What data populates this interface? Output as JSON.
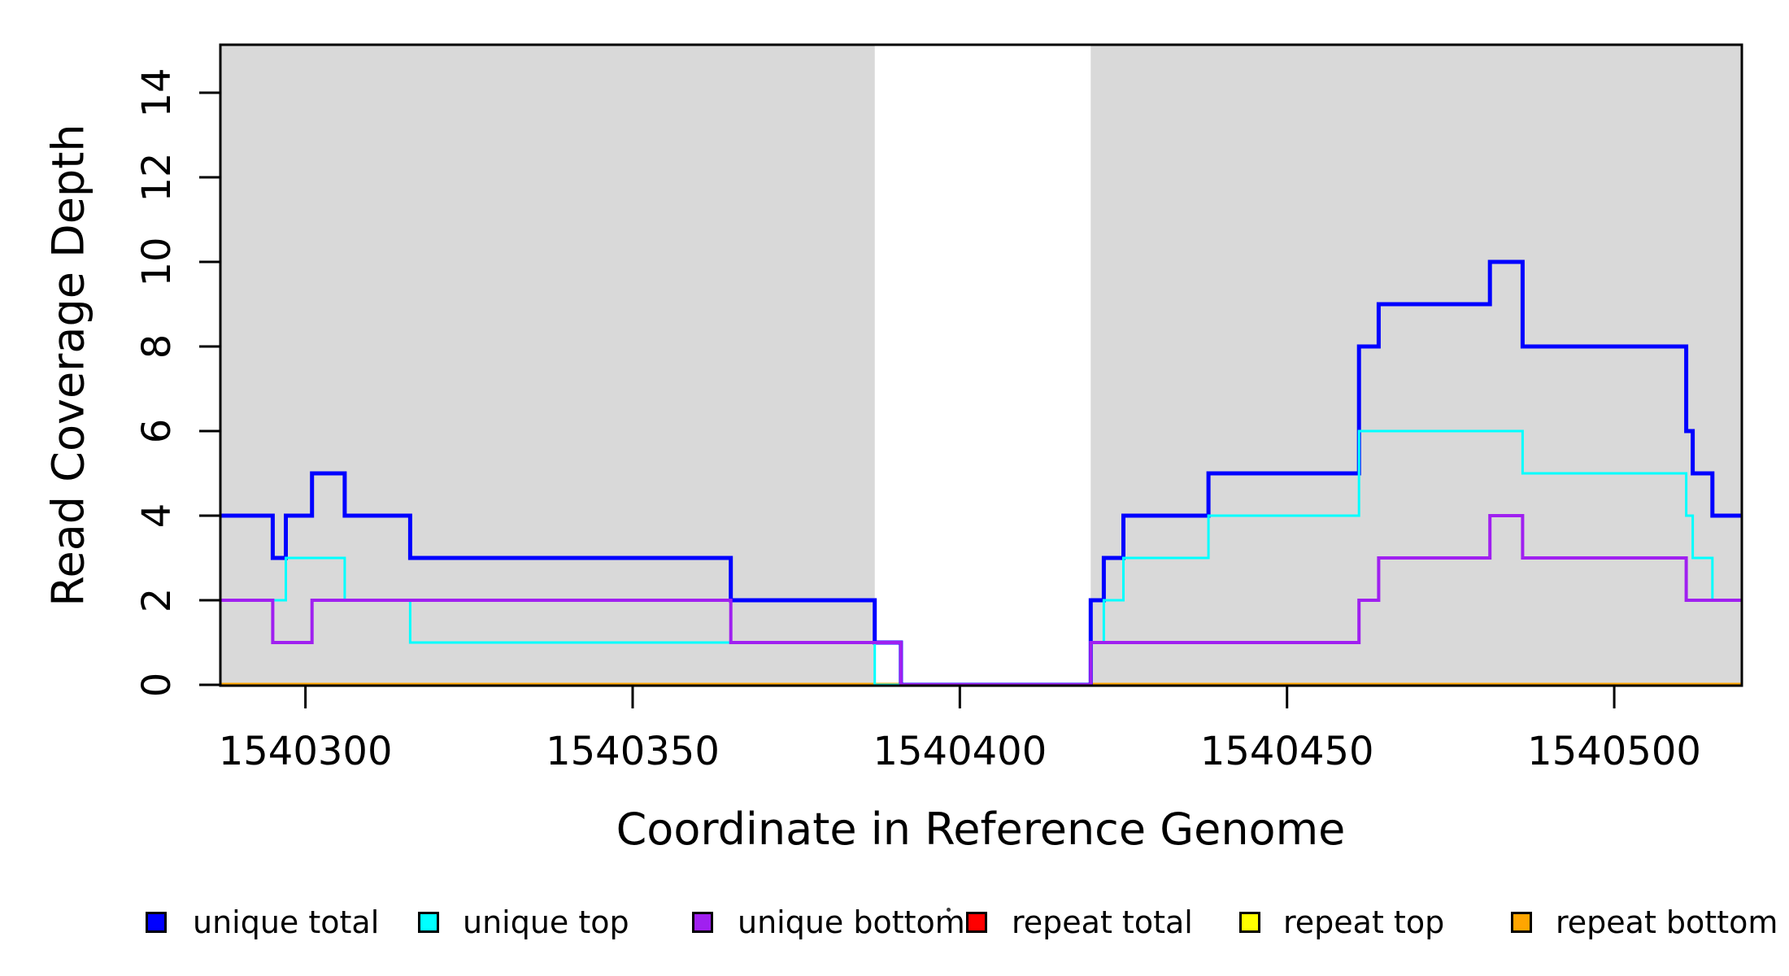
{
  "chart_data": {
    "type": "line",
    "subtype": "step",
    "title": "",
    "xlabel": "Coordinate in Reference Genome",
    "ylabel": "Read Coverage Depth",
    "xlim": [
      1540287,
      1540519.5
    ],
    "ylim": [
      0,
      15.13
    ],
    "grid": false,
    "x_ticks": {
      "values": [
        1540300,
        1540350,
        1540400,
        1540450,
        1540500
      ],
      "labels": [
        "1540300",
        "1540350",
        "1540400",
        "1540450",
        "1540500"
      ]
    },
    "y_ticks": {
      "values": [
        0,
        2,
        4,
        6,
        8,
        10,
        12,
        14
      ],
      "labels": [
        "0",
        "2",
        "4",
        "6",
        "8",
        "10",
        "12",
        "14"
      ]
    },
    "shaded_regions": {
      "color": "#D9D9D9",
      "regions": [
        [
          1540287,
          1540387
        ],
        [
          1540420,
          1540519.5
        ]
      ]
    },
    "series": [
      {
        "name": "repeat total",
        "color": "#FF0000",
        "width": 5,
        "points": [
          [
            1540287,
            0
          ]
        ]
      },
      {
        "name": "repeat top",
        "color": "#FFFF00",
        "width": 5,
        "points": [
          [
            1540287,
            0
          ]
        ]
      },
      {
        "name": "repeat bottom",
        "color": "#FFA500",
        "width": 5,
        "points": [
          [
            1540287,
            0
          ]
        ]
      },
      {
        "name": "unique total",
        "color": "#0000FF",
        "width": 5,
        "points": [
          [
            1540287,
            4
          ],
          [
            1540295,
            3
          ],
          [
            1540297,
            4
          ],
          [
            1540301,
            5
          ],
          [
            1540306,
            4
          ],
          [
            1540316,
            3
          ],
          [
            1540365,
            2
          ],
          [
            1540387,
            1
          ],
          [
            1540391,
            0
          ],
          [
            1540420,
            2
          ],
          [
            1540422,
            3
          ],
          [
            1540425,
            4
          ],
          [
            1540438,
            5
          ],
          [
            1540461,
            8
          ],
          [
            1540464,
            9
          ],
          [
            1540481,
            10
          ],
          [
            1540486,
            8
          ],
          [
            1540511,
            6
          ],
          [
            1540512,
            5
          ],
          [
            1540515,
            4
          ]
        ]
      },
      {
        "name": "unique top",
        "color": "#00FFFF",
        "width": 3,
        "points": [
          [
            1540287,
            2
          ],
          [
            1540297,
            3
          ],
          [
            1540306,
            2
          ],
          [
            1540316,
            1
          ],
          [
            1540387,
            0
          ],
          [
            1540420,
            1
          ],
          [
            1540422,
            2
          ],
          [
            1540425,
            3
          ],
          [
            1540438,
            4
          ],
          [
            1540461,
            6
          ],
          [
            1540486,
            5
          ],
          [
            1540511,
            4
          ],
          [
            1540512,
            3
          ],
          [
            1540515,
            2
          ]
        ]
      },
      {
        "name": "unique bottom",
        "color": "#A020F0",
        "width": 4,
        "points": [
          [
            1540287,
            2
          ],
          [
            1540295,
            1
          ],
          [
            1540301,
            2
          ],
          [
            1540365,
            1
          ],
          [
            1540391,
            0
          ],
          [
            1540420,
            1
          ],
          [
            1540461,
            2
          ],
          [
            1540464,
            3
          ],
          [
            1540481,
            4
          ],
          [
            1540486,
            3
          ],
          [
            1540511,
            2
          ]
        ]
      }
    ],
    "legend": {
      "position": "bottom",
      "entries": [
        {
          "label": "unique total",
          "color": "#0000FF"
        },
        {
          "label": "unique top",
          "color": "#00FFFF"
        },
        {
          "label": "unique bottom",
          "color": "#A020F0"
        },
        {
          "label": "repeat total",
          "color": "#FF0000"
        },
        {
          "label": "repeat top",
          "color": "#FFFF00"
        },
        {
          "label": "repeat bottom",
          "color": "#FFA500"
        }
      ]
    }
  }
}
